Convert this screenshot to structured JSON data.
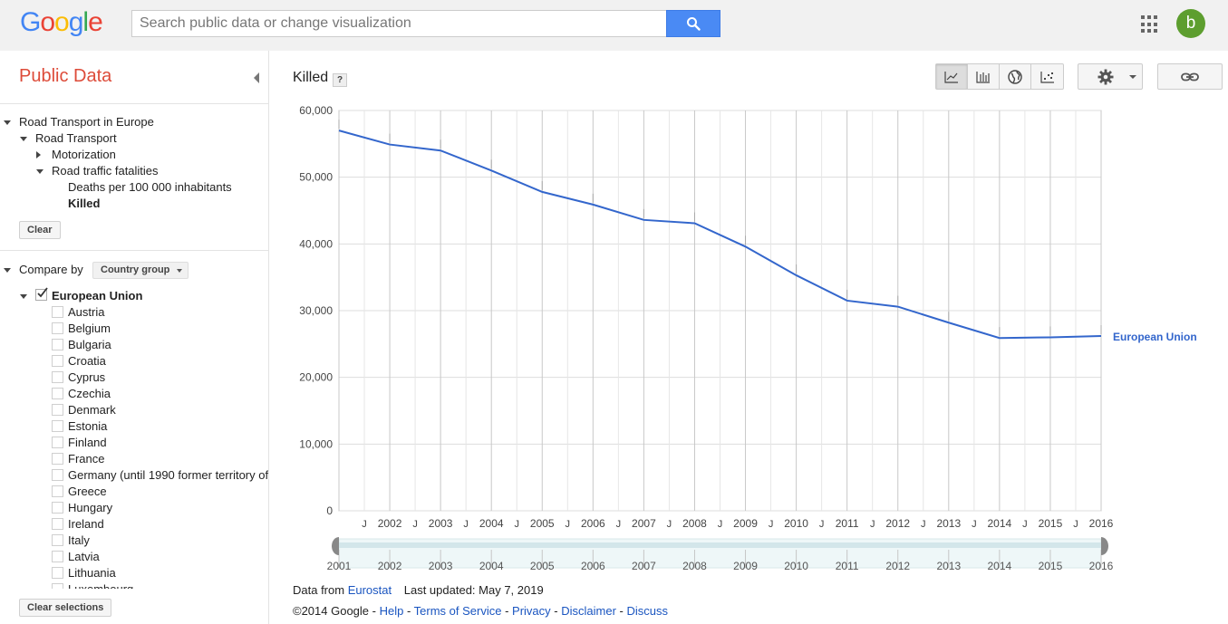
{
  "header": {
    "logo_letters": [
      {
        "ch": "G",
        "color": "#4285f4"
      },
      {
        "ch": "o",
        "color": "#ea4335"
      },
      {
        "ch": "o",
        "color": "#fbbc05"
      },
      {
        "ch": "g",
        "color": "#4285f4"
      },
      {
        "ch": "l",
        "color": "#34a853"
      },
      {
        "ch": "e",
        "color": "#ea4335"
      }
    ],
    "search_placeholder": "Search public data or change visualization",
    "search_value": "",
    "avatar_letter": "b"
  },
  "sidebar": {
    "title": "Public Data",
    "tree": {
      "root": "Road Transport in Europe",
      "level1": "Road Transport",
      "motorization": "Motorization",
      "fatalities": "Road traffic fatalities",
      "deaths": "Deaths per 100 000 inhabitants",
      "killed": "Killed"
    },
    "clear_label": "Clear",
    "compare_label": "Compare by",
    "compare_value": "Country group",
    "group_label": "European Union",
    "countries": [
      "Austria",
      "Belgium",
      "Bulgaria",
      "Croatia",
      "Cyprus",
      "Czechia",
      "Denmark",
      "Estonia",
      "Finland",
      "France",
      "Germany (until 1990 former territory of",
      "Greece",
      "Hungary",
      "Ireland",
      "Italy",
      "Latvia",
      "Lithuania",
      "Luxembourg"
    ],
    "clear_selections_label": "Clear selections"
  },
  "main": {
    "title": "Killed",
    "help_label": "?"
  },
  "chart_data": {
    "type": "line",
    "title": "Killed",
    "xlabel": "",
    "ylabel": "",
    "x": [
      2001,
      2002,
      2003,
      2004,
      2005,
      2006,
      2007,
      2008,
      2009,
      2010,
      2011,
      2012,
      2013,
      2014,
      2015,
      2016
    ],
    "series": [
      {
        "name": "European Union",
        "color": "#3366cc",
        "values": [
          57000,
          54900,
          54000,
          51000,
          47800,
          45900,
          43600,
          43100,
          39600,
          35300,
          31500,
          30600,
          28200,
          25900,
          26000,
          26200
        ]
      }
    ],
    "ylim": [
      0,
      60000
    ],
    "yticks": [
      0,
      10000,
      20000,
      30000,
      40000,
      50000,
      60000
    ],
    "ytick_labels": [
      "0",
      "10,000",
      "20,000",
      "30,000",
      "40,000",
      "50,000",
      "60,000"
    ],
    "xtick_labels": [
      "2002",
      "2003",
      "2004",
      "2005",
      "2006",
      "2007",
      "2008",
      "2009",
      "2010",
      "2011",
      "2012",
      "2013",
      "2014",
      "2015",
      "2016"
    ],
    "minor_tick_label": "J",
    "timeline_labels": [
      "2001",
      "2002",
      "2003",
      "2004",
      "2005",
      "2006",
      "2007",
      "2008",
      "2009",
      "2010",
      "2011",
      "2012",
      "2013",
      "2014",
      "2015",
      "2016"
    ],
    "grid": true,
    "legend": "right"
  },
  "footer": {
    "data_from": "Data from",
    "source": "Eurostat",
    "last_updated": "Last updated: May 7, 2019",
    "copyright": "©2014 Google",
    "sep": " - ",
    "links": [
      "Help",
      "Terms of Service",
      "Privacy",
      "Disclaimer",
      "Discuss"
    ]
  }
}
